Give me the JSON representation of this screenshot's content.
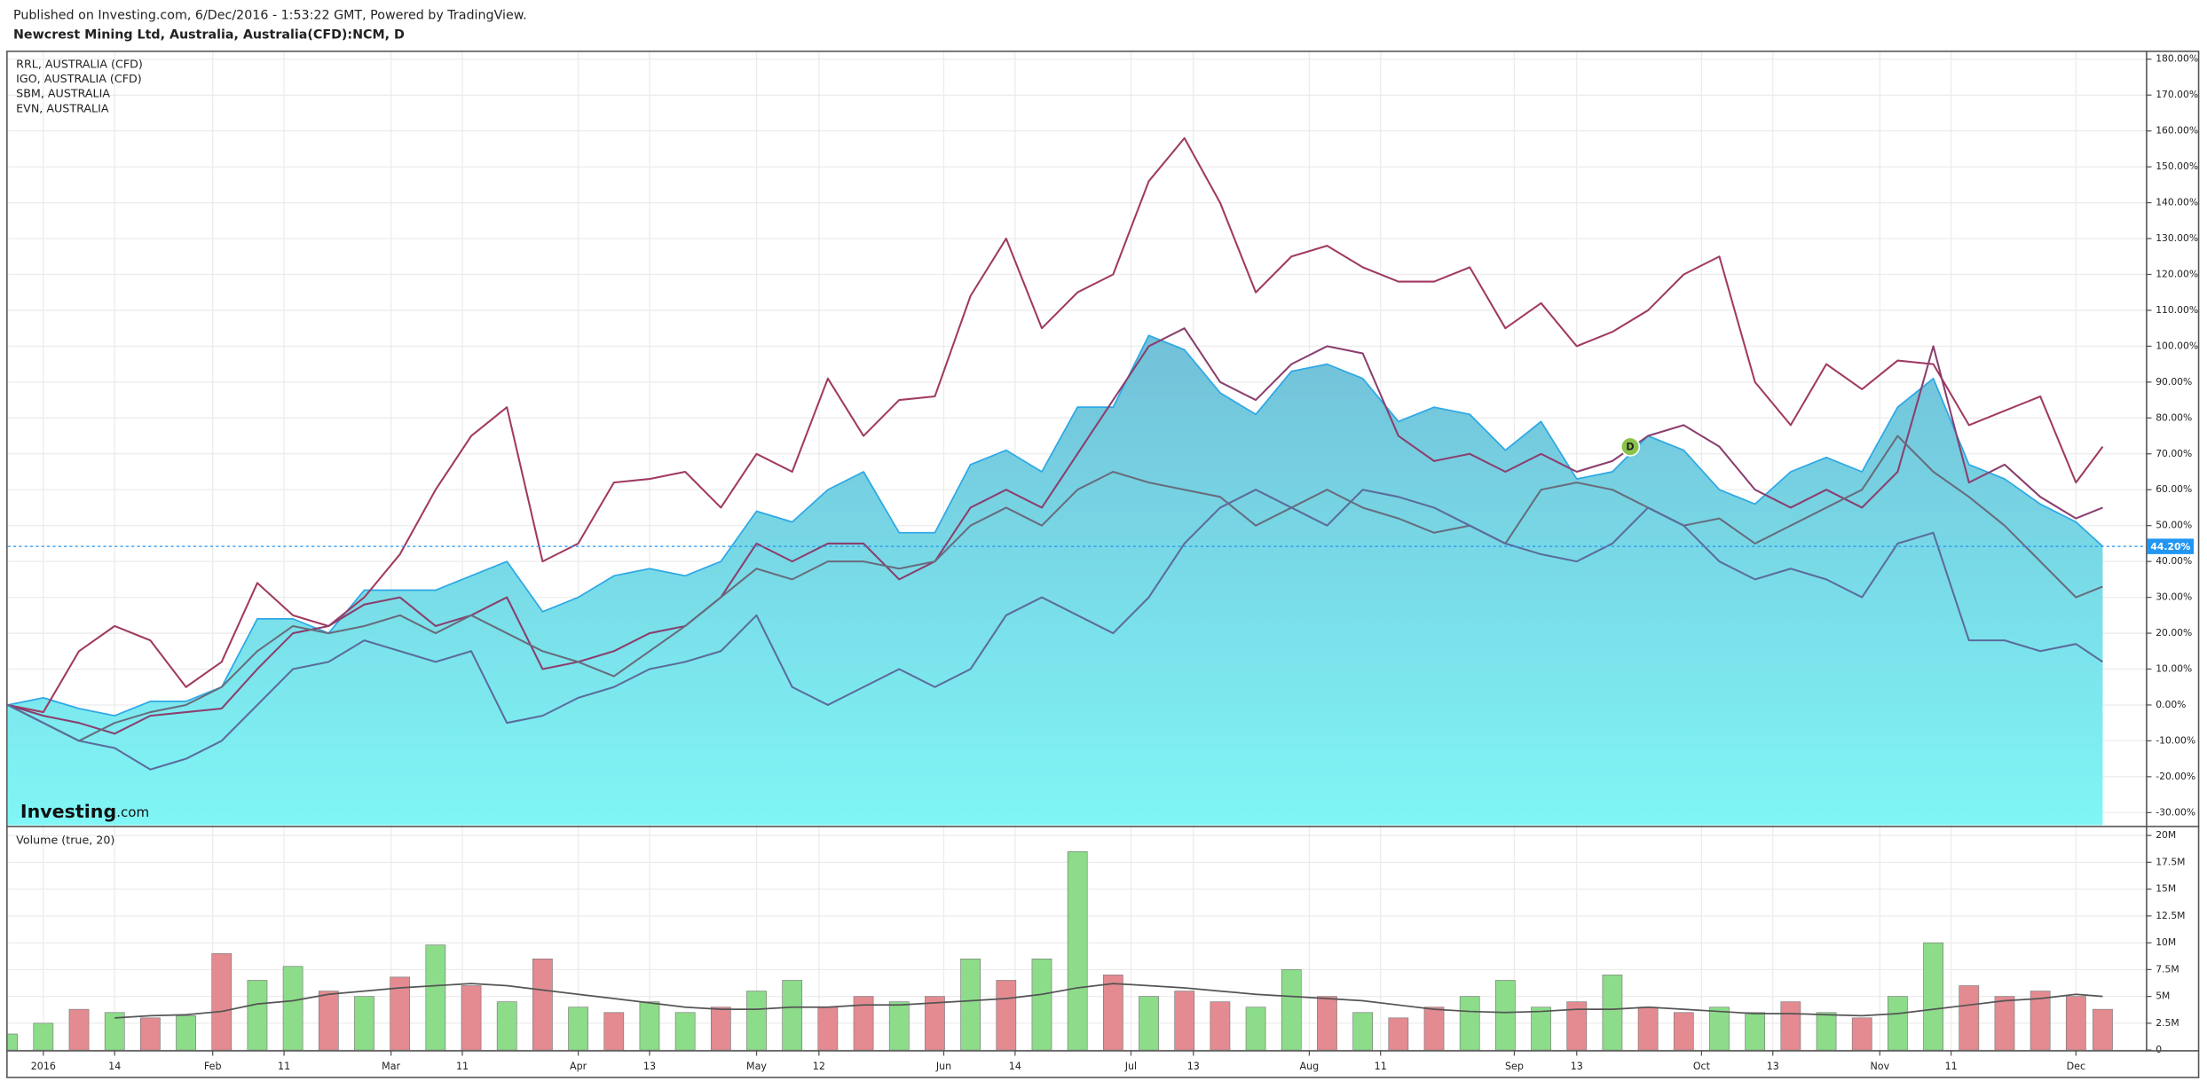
{
  "header": {
    "text": "Published on Investing.com, 6/Dec/2016 - 1:53:22 GMT, Powered by TradingView."
  },
  "chart_data": [
    {
      "type": "line",
      "title": "Newcrest Mining Ltd, Australia, Australia(CFD):NCM, D",
      "x": [
        0,
        4,
        8,
        12,
        16,
        20,
        24,
        28,
        32,
        36,
        40,
        44,
        48,
        52,
        56,
        60,
        64,
        68,
        72,
        76,
        80,
        84,
        88,
        92,
        96,
        100,
        104,
        108,
        112,
        116,
        120,
        124,
        128,
        132,
        136,
        140,
        144,
        148,
        152,
        156,
        160,
        164,
        168,
        172,
        176,
        180,
        184,
        188,
        192,
        196,
        200,
        204,
        208,
        212,
        216,
        220,
        224,
        228,
        232,
        235
      ],
      "series": [
        {
          "color": "#2ea8e6",
          "area": true,
          "fill": [
            "#72c0d8",
            "#80f6f6"
          ],
          "values": [
            0,
            2,
            -1,
            -3,
            1,
            1,
            5,
            24,
            24,
            20,
            32,
            32,
            32,
            36,
            40,
            26,
            30,
            36,
            38,
            36,
            40,
            54,
            51,
            60,
            65,
            48,
            48,
            67,
            71,
            65,
            83,
            83,
            103,
            99,
            87,
            81,
            93,
            95,
            91,
            79,
            83,
            81,
            71,
            79,
            63,
            65,
            75,
            71,
            60,
            56,
            65,
            69,
            65,
            83,
            91,
            67,
            63,
            56,
            51,
            44.2
          ]
        },
        {
          "name": "RRL, AUSTRALIA (CFD)",
          "color": "#a03a62",
          "values": [
            0,
            -2,
            15,
            22,
            18,
            5,
            12,
            34,
            25,
            22,
            30,
            42,
            60,
            75,
            83,
            40,
            45,
            62,
            63,
            65,
            55,
            70,
            65,
            91,
            75,
            85,
            86,
            114,
            130,
            105,
            115,
            120,
            146,
            158,
            140,
            115,
            125,
            128,
            122,
            118,
            118,
            122,
            105,
            112,
            100,
            104,
            110,
            120,
            125,
            90,
            78,
            95,
            88,
            96,
            95,
            78,
            82,
            86,
            62,
            72
          ]
        },
        {
          "name": "IGO, AUSTRALIA (CFD)",
          "color": "#8a3f6e",
          "values": [
            0,
            -3,
            -5,
            -8,
            -3,
            -2,
            -1,
            10,
            20,
            22,
            28,
            30,
            22,
            25,
            30,
            10,
            12,
            15,
            20,
            22,
            30,
            45,
            40,
            45,
            45,
            35,
            40,
            55,
            60,
            55,
            70,
            85,
            100,
            105,
            90,
            85,
            95,
            100,
            98,
            75,
            68,
            70,
            65,
            70,
            65,
            68,
            75,
            78,
            72,
            60,
            55,
            60,
            55,
            65,
            100,
            62,
            67,
            58,
            52,
            55
          ]
        },
        {
          "name": "SBM, AUSTRALIA",
          "color": "#676d7d",
          "values": [
            0,
            -5,
            -10,
            -5,
            -2,
            0,
            5,
            15,
            22,
            20,
            22,
            25,
            20,
            25,
            20,
            15,
            12,
            8,
            15,
            22,
            30,
            38,
            35,
            40,
            40,
            38,
            40,
            50,
            55,
            50,
            60,
            65,
            62,
            60,
            58,
            50,
            55,
            60,
            55,
            52,
            48,
            50,
            45,
            60,
            62,
            60,
            55,
            50,
            52,
            45,
            50,
            55,
            60,
            75,
            65,
            58,
            50,
            40,
            30,
            33
          ]
        },
        {
          "name": "EVN, AUSTRALIA",
          "color": "#5b6c9c",
          "values": [
            0,
            -5,
            -10,
            -12,
            -18,
            -15,
            -10,
            0,
            10,
            12,
            18,
            15,
            12,
            15,
            -5,
            -3,
            2,
            5,
            10,
            12,
            15,
            25,
            5,
            0,
            5,
            10,
            5,
            10,
            25,
            30,
            25,
            20,
            30,
            45,
            55,
            60,
            55,
            50,
            60,
            58,
            55,
            50,
            45,
            42,
            40,
            45,
            55,
            50,
            40,
            35,
            38,
            35,
            30,
            45,
            48,
            18,
            18,
            15,
            17,
            12
          ]
        }
      ],
      "xlim": [
        0,
        240
      ],
      "ylim": [
        -33.5,
        182
      ],
      "yticks": [
        {
          "value": 180,
          "label": "180.00%"
        },
        {
          "value": 170,
          "label": "170.00%"
        },
        {
          "value": 160,
          "label": "160.00%"
        },
        {
          "value": 150,
          "label": "150.00%"
        },
        {
          "value": 140,
          "label": "140.00%"
        },
        {
          "value": 130,
          "label": "130.00%"
        },
        {
          "value": 120,
          "label": "120.00%"
        },
        {
          "value": 110,
          "label": "110.00%"
        },
        {
          "value": 100,
          "label": "100.00%"
        },
        {
          "value": 90,
          "label": "90.00%"
        },
        {
          "value": 80,
          "label": "80.00%"
        },
        {
          "value": 70,
          "label": "70.00%"
        },
        {
          "value": 60,
          "label": "60.00%"
        },
        {
          "value": 50,
          "label": "50.00%"
        },
        {
          "value": 40,
          "label": "40.00%"
        },
        {
          "value": 30,
          "label": "30.00%"
        },
        {
          "value": 20,
          "label": "20.00%"
        },
        {
          "value": 10,
          "label": "10.00%"
        },
        {
          "value": 0,
          "label": "0.00%"
        },
        {
          "value": -10,
          "label": "-10.00%"
        },
        {
          "value": -20,
          "label": "-20.00%"
        },
        {
          "value": -30,
          "label": "-30.00%"
        }
      ],
      "last_value": {
        "value": 44.2,
        "label": "44.20%",
        "color": "#2196f3"
      },
      "markers": [
        {
          "label": "D",
          "x": 182,
          "y": 72,
          "color": "#8bc34a"
        }
      ],
      "watermark": {
        "brand": "Investing",
        "suffix": ".com"
      },
      "grid": true
    },
    {
      "type": "bar",
      "title": "Volume (true, 20)",
      "x": [
        0,
        4,
        8,
        12,
        16,
        20,
        24,
        28,
        32,
        36,
        40,
        44,
        48,
        52,
        56,
        60,
        64,
        68,
        72,
        76,
        80,
        84,
        88,
        92,
        96,
        100,
        104,
        108,
        112,
        116,
        120,
        124,
        128,
        132,
        136,
        140,
        144,
        148,
        152,
        156,
        160,
        164,
        168,
        172,
        176,
        180,
        184,
        188,
        192,
        196,
        200,
        204,
        208,
        212,
        216,
        220,
        224,
        228,
        232,
        235
      ],
      "values": [
        1.5,
        2.5,
        3.8,
        3.5,
        3.0,
        3.2,
        9.0,
        6.5,
        7.8,
        5.5,
        5.0,
        6.8,
        9.8,
        6.0,
        4.5,
        8.5,
        4.0,
        3.5,
        4.5,
        3.5,
        4.0,
        5.5,
        6.5,
        4.0,
        5.0,
        4.5,
        5.0,
        8.5,
        6.5,
        8.5,
        18.5,
        7.0,
        5.0,
        5.5,
        4.5,
        4.0,
        7.5,
        5.0,
        3.5,
        3.0,
        4.0,
        5.0,
        6.5,
        4.0,
        4.5,
        7.0,
        4.0,
        3.5,
        4.0,
        3.5,
        4.5,
        3.5,
        3.0,
        5.0,
        10.0,
        6.0,
        5.0,
        5.5,
        5.0,
        3.8
      ],
      "colors": [
        "#8cdc8a",
        "#8cdc8a",
        "#e38b91",
        "#8cdc8a",
        "#e38b91",
        "#8cdc8a",
        "#e38b91",
        "#8cdc8a",
        "#8cdc8a",
        "#e38b91",
        "#8cdc8a",
        "#e38b91",
        "#8cdc8a",
        "#e38b91",
        "#8cdc8a",
        "#e38b91",
        "#8cdc8a",
        "#e38b91",
        "#8cdc8a",
        "#8cdc8a",
        "#e38b91",
        "#8cdc8a",
        "#8cdc8a",
        "#e38b91",
        "#e38b91",
        "#8cdc8a",
        "#e38b91",
        "#8cdc8a",
        "#e38b91",
        "#8cdc8a",
        "#8cdc8a",
        "#e38b91",
        "#8cdc8a",
        "#e38b91",
        "#e38b91",
        "#8cdc8a",
        "#8cdc8a",
        "#e38b91",
        "#8cdc8a",
        "#e38b91",
        "#e38b91",
        "#8cdc8a",
        "#8cdc8a",
        "#8cdc8a",
        "#e38b91",
        "#8cdc8a",
        "#e38b91",
        "#e38b91",
        "#8cdc8a",
        "#8cdc8a",
        "#e38b91",
        "#8cdc8a",
        "#e38b91",
        "#8cdc8a",
        "#8cdc8a",
        "#e38b91",
        "#e38b91",
        "#e38b91",
        "#e38b91",
        "#e38b91"
      ],
      "average": {
        "color": "#555555",
        "values": [
          null,
          null,
          null,
          3.0,
          3.2,
          3.3,
          3.6,
          4.3,
          4.6,
          5.2,
          5.5,
          5.8,
          6.0,
          6.2,
          6.0,
          5.6,
          5.2,
          4.8,
          4.4,
          4.0,
          3.8,
          3.8,
          4.0,
          4.0,
          4.2,
          4.2,
          4.4,
          4.6,
          4.8,
          5.2,
          5.8,
          6.2,
          6.0,
          5.8,
          5.5,
          5.2,
          5.0,
          4.8,
          4.6,
          4.2,
          3.8,
          3.6,
          3.5,
          3.6,
          3.8,
          3.8,
          4.0,
          3.8,
          3.6,
          3.4,
          3.4,
          3.3,
          3.2,
          3.4,
          3.8,
          4.2,
          4.6,
          4.8,
          5.2,
          5.0
        ]
      },
      "xlim": [
        0,
        240
      ],
      "ylim": [
        0,
        20.7
      ],
      "yticks": [
        0,
        {
          "value": 2.5,
          "label": "2.5M"
        },
        {
          "value": 5,
          "label": "5M"
        },
        {
          "value": 7.5,
          "label": "7.5M"
        },
        {
          "value": 10,
          "label": "10M"
        },
        {
          "value": 12.5,
          "label": "12.5M"
        },
        {
          "value": 15,
          "label": "15M"
        },
        {
          "value": 17.5,
          "label": "17.5M"
        },
        {
          "value": 20,
          "label": "20M"
        }
      ],
      "xticks": [
        {
          "value": 4,
          "label": "2016"
        },
        {
          "value": 12,
          "label": "14"
        },
        {
          "value": 23,
          "label": "Feb"
        },
        {
          "value": 31,
          "label": "11"
        },
        {
          "value": 43,
          "label": "Mar"
        },
        {
          "value": 51,
          "label": "11"
        },
        {
          "value": 64,
          "label": "Apr"
        },
        {
          "value": 72,
          "label": "13"
        },
        {
          "value": 84,
          "label": "May"
        },
        {
          "value": 91,
          "label": "12"
        },
        {
          "value": 105,
          "label": "Jun"
        },
        {
          "value": 113,
          "label": "14"
        },
        {
          "value": 126,
          "label": "Jul"
        },
        {
          "value": 133,
          "label": "13"
        },
        {
          "value": 146,
          "label": "Aug"
        },
        {
          "value": 154,
          "label": "11"
        },
        {
          "value": 169,
          "label": "Sep"
        },
        {
          "value": 176,
          "label": "13"
        },
        {
          "value": 190,
          "label": "Oct"
        },
        {
          "value": 198,
          "label": "13"
        },
        {
          "value": 210,
          "label": "Nov"
        },
        {
          "value": 218,
          "label": "11"
        },
        {
          "value": 232,
          "label": "Dec"
        }
      ],
      "grid": true
    }
  ]
}
